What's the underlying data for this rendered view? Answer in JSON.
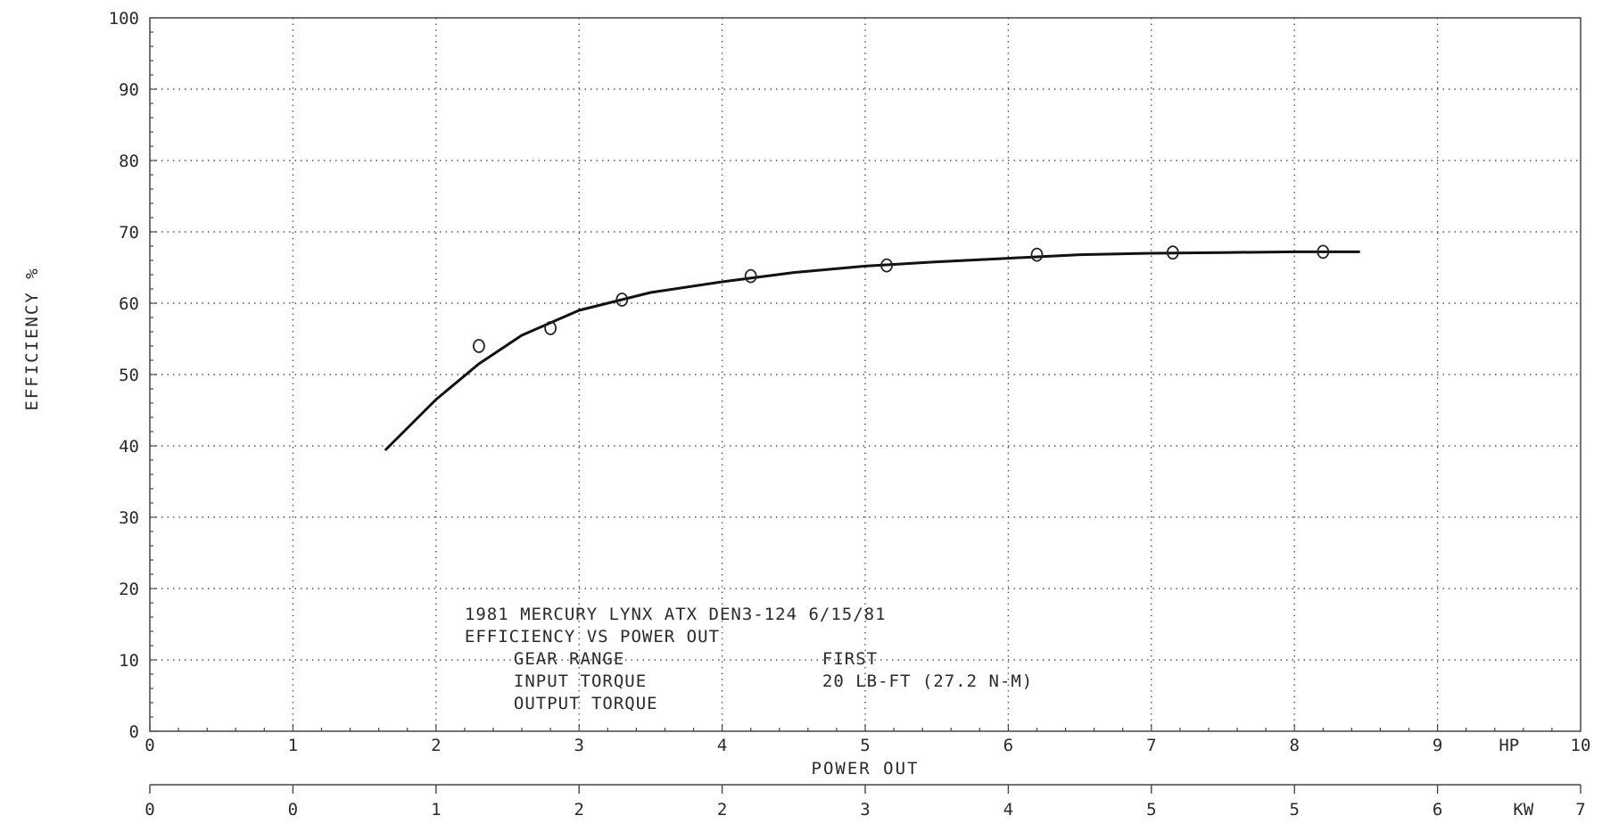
{
  "chart_data": {
    "type": "scatter",
    "title": "EFFICIENCY VS POWER OUT",
    "subtitle": "1981 MERCURY LYNX ATX DEN3-124 6/15/81",
    "xlabel": "POWER OUT",
    "ylabel": "EFFICIENCY %",
    "x_unit": "HP",
    "x2_unit": "KW",
    "xlim": [
      0,
      10
    ],
    "ylim": [
      0,
      100
    ],
    "grid": true,
    "x_ticks": [
      "0",
      "1",
      "2",
      "3",
      "4",
      "5",
      "6",
      "7",
      "8",
      "9",
      "10"
    ],
    "y_ticks": [
      "0",
      "10",
      "20",
      "30",
      "40",
      "50",
      "60",
      "70",
      "80",
      "90",
      "100"
    ],
    "x2_ticks": [
      "0",
      "0",
      "1",
      "2",
      "2",
      "3",
      "4",
      "5",
      "5",
      "6",
      "7"
    ],
    "info": [
      {
        "label": "GEAR RANGE",
        "value": "FIRST"
      },
      {
        "label": "INPUT TORQUE",
        "value": "20 LB-FT (27.2 N-M)"
      },
      {
        "label": "OUTPUT TORQUE",
        "value": ""
      }
    ],
    "series": [
      {
        "type": "scatter",
        "x": [
          2.3,
          2.8,
          3.3,
          4.2,
          5.15,
          6.2,
          7.15,
          8.2
        ],
        "y": [
          54.0,
          56.5,
          60.5,
          63.8,
          65.3,
          66.8,
          67.1,
          67.2
        ]
      },
      {
        "type": "line",
        "x": [
          1.65,
          2.0,
          2.3,
          2.6,
          3.0,
          3.5,
          4.0,
          4.5,
          5.0,
          5.5,
          6.0,
          6.5,
          7.0,
          7.5,
          8.0,
          8.45
        ],
        "y": [
          39.5,
          46.5,
          51.5,
          55.5,
          59.0,
          61.5,
          63.0,
          64.3,
          65.2,
          65.8,
          66.3,
          66.8,
          67.0,
          67.1,
          67.2,
          67.2
        ]
      }
    ]
  }
}
